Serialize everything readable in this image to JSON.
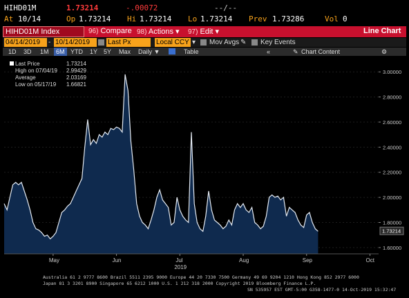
{
  "header": {
    "ticker": "HIHD01M",
    "last": "1.73214",
    "change": "-.00072",
    "timer": "--/--",
    "at_label": "At",
    "at_value": "10/14",
    "op_label": "Op",
    "op_value": "1.73214",
    "hi_label": "Hi",
    "hi_value": "1.73214",
    "lo_label": "Lo",
    "lo_value": "1.73214",
    "prev_label": "Prev",
    "prev_value": "1.73286",
    "vol_label": "Vol",
    "vol_value": "0"
  },
  "toolbar": {
    "index_label": "HIHD01M Index",
    "compare_num": "96)",
    "compare_label": "Compare",
    "actions_num": "98)",
    "actions_label": "Actions",
    "edit_num": "97)",
    "edit_label": "Edit",
    "chart_type": "Line Chart"
  },
  "controls": {
    "start_date": "04/14/2019",
    "end_date": "10/14/2019",
    "price_field": "Last Px",
    "currency": "Local CCY",
    "mov_avgs": "Mov Avgs",
    "key_events": "Key Events"
  },
  "periods": {
    "items": [
      "1D",
      "3D",
      "1M",
      "6M",
      "YTD",
      "1Y",
      "5Y",
      "Max"
    ],
    "selected": "6M",
    "frequency": "Daily",
    "table_label": "Table",
    "chart_content": "Chart Content"
  },
  "legend": {
    "last_price_label": "Last Price",
    "last_price_value": "1.73214",
    "high_label": "High on 07/04/19",
    "high_value": "2.99429",
    "average_label": "Average",
    "average_value": "2.03169",
    "low_label": "Low on 05/17/19",
    "low_value": "1.66821"
  },
  "chart_data": {
    "type": "area",
    "title": "",
    "xlabel": "2019",
    "ylabel": "",
    "ylim": [
      1.55,
      3.1
    ],
    "yticks": [
      "3.00000",
      "2.80000",
      "2.60000",
      "2.40000",
      "2.20000",
      "2.00000",
      "1.80000",
      "1.60000"
    ],
    "ytick_values": [
      3.0,
      2.8,
      2.6,
      2.4,
      2.2,
      2.0,
      1.8,
      1.6
    ],
    "xticks": [
      "May",
      "Jun",
      "Jul",
      "Aug",
      "Sep",
      "Oct"
    ],
    "xtick_positions": [
      17,
      39,
      61,
      83,
      105,
      127
    ],
    "last_value_label": "1.73214",
    "colors": {
      "fill": "#0f2a4e",
      "line": "#e6ecf4",
      "background": "#000000",
      "last_tag": "#2a2a2a"
    },
    "x_range": [
      0,
      130
    ],
    "series": [
      {
        "values": [
          1.95,
          1.9,
          2.0,
          2.1,
          2.12,
          2.1,
          2.12,
          2.05,
          1.98,
          1.9,
          1.8,
          1.75,
          1.74,
          1.72,
          1.69,
          1.7,
          1.67,
          1.69,
          1.72,
          1.8,
          1.88,
          1.9,
          1.93,
          1.95,
          2.0,
          2.05,
          2.1,
          2.15,
          2.4,
          2.62,
          2.42,
          2.46,
          2.43,
          2.5,
          2.48,
          2.52,
          2.5,
          2.55,
          2.54,
          2.56,
          2.55,
          2.52,
          2.98,
          2.85,
          2.45,
          2.22,
          1.95,
          1.85,
          1.8,
          1.78,
          1.75,
          1.82,
          1.9,
          2.0,
          2.06,
          1.98,
          1.95,
          1.92,
          1.78,
          1.8,
          2.0,
          1.9,
          1.85,
          1.82,
          1.8,
          2.52,
          1.95,
          1.8,
          1.75,
          1.73,
          1.85,
          2.05,
          1.9,
          1.82,
          1.8,
          1.78,
          1.75,
          1.77,
          1.82,
          1.78,
          1.9,
          1.95,
          1.92,
          1.95,
          1.9,
          1.88,
          1.92,
          1.8,
          1.78,
          1.75,
          1.77,
          1.85,
          2.0,
          2.02,
          2.0,
          2.01,
          1.98,
          2.0,
          1.85,
          1.92,
          1.9,
          1.88,
          1.82,
          1.78,
          1.76,
          1.86,
          1.88,
          1.8,
          1.75,
          1.73
        ],
        "x": [
          0,
          1,
          2,
          3,
          4,
          5,
          6,
          7,
          8,
          9,
          10,
          11,
          12,
          13,
          14,
          15,
          16,
          17,
          18,
          19,
          20,
          21,
          22,
          23,
          24,
          25,
          26,
          27,
          28,
          29,
          30,
          31,
          32,
          33,
          34,
          35,
          36,
          37,
          38,
          39,
          40,
          41,
          42,
          43,
          44,
          45,
          46,
          47,
          48,
          49,
          50,
          51,
          52,
          53,
          54,
          55,
          56,
          57,
          58,
          59,
          60,
          61,
          62,
          63,
          64,
          65,
          66,
          67,
          68,
          69,
          70,
          71,
          72,
          73,
          74,
          75,
          76,
          77,
          78,
          79,
          80,
          81,
          82,
          83,
          84,
          85,
          86,
          87,
          88,
          89,
          90,
          91,
          92,
          93,
          94,
          95,
          96,
          97,
          98,
          99,
          100,
          101,
          102,
          103,
          104,
          105,
          106,
          107,
          108,
          109
        ]
      }
    ]
  },
  "footer": {
    "line1": "Australia 61 2 9777 8600 Brazil 5511 2395 9000 Europe 44 20 7330 7500 Germany 49 69 9204 1210 Hong Kong 852 2977 6000",
    "line2": "Japan 81 3 3201 8900       Singapore 65 6212 1000     U.S. 1 212 318 2000         Copyright 2019 Bloomberg Finance L.P.",
    "line3": "SN 535957 EST  GMT-5:00 G358-1477-0 14-Oct-2019 15:32:47"
  }
}
